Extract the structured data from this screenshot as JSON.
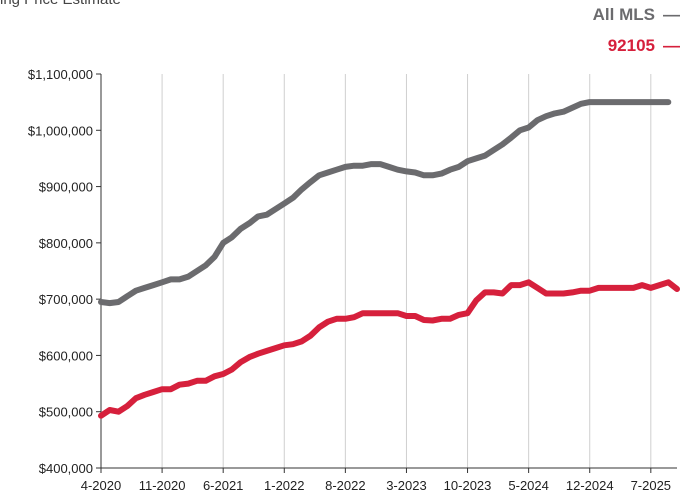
{
  "header": {
    "title_fragment": "ing Price Estimate"
  },
  "legend": {
    "items": [
      {
        "label": "All MLS",
        "dash": "—"
      },
      {
        "label": "92105",
        "dash": "—"
      }
    ]
  },
  "chart_data": {
    "type": "line",
    "title": "",
    "xlabel": "",
    "ylabel": "",
    "ylim": [
      400000,
      1100000
    ],
    "yticks": [
      {
        "value": 400000,
        "label": "$400,000"
      },
      {
        "value": 500000,
        "label": "$500,000"
      },
      {
        "value": 600000,
        "label": "$600,000"
      },
      {
        "value": 700000,
        "label": "$700,000"
      },
      {
        "value": 800000,
        "label": "$800,000"
      },
      {
        "value": 900000,
        "label": "$900,000"
      },
      {
        "value": 1000000,
        "label": "$1,000,000"
      },
      {
        "value": 1100000,
        "label": "$1,100,000"
      }
    ],
    "xticks": [
      {
        "value": "2020-04",
        "label": "4-2020"
      },
      {
        "value": "2020-11",
        "label": "11-2020"
      },
      {
        "value": "2021-06",
        "label": "6-2021"
      },
      {
        "value": "2022-01",
        "label": "1-2022"
      },
      {
        "value": "2022-08",
        "label": "8-2022"
      },
      {
        "value": "2023-03",
        "label": "3-2023"
      },
      {
        "value": "2023-10",
        "label": "10-2023"
      },
      {
        "value": "2024-05",
        "label": "5-2024"
      },
      {
        "value": "2024-12",
        "label": "12-2024"
      },
      {
        "value": "2025-07",
        "label": "7-2025"
      }
    ],
    "grid": "vertical",
    "legend_position": "top-right",
    "series": [
      {
        "name": "All MLS",
        "color": "#6b6b6e",
        "points": [
          [
            "2020-04",
            695000
          ],
          [
            "2020-05",
            693000
          ],
          [
            "2020-06",
            695000
          ],
          [
            "2020-07",
            705000
          ],
          [
            "2020-08",
            715000
          ],
          [
            "2020-09",
            720000
          ],
          [
            "2020-10",
            725000
          ],
          [
            "2020-11",
            730000
          ],
          [
            "2020-12",
            735000
          ],
          [
            "2021-01",
            735000
          ],
          [
            "2021-02",
            740000
          ],
          [
            "2021-03",
            750000
          ],
          [
            "2021-04",
            760000
          ],
          [
            "2021-05",
            775000
          ],
          [
            "2021-06",
            800000
          ],
          [
            "2021-07",
            810000
          ],
          [
            "2021-08",
            825000
          ],
          [
            "2021-09",
            835000
          ],
          [
            "2021-10",
            847000
          ],
          [
            "2021-11",
            850000
          ],
          [
            "2021-12",
            860000
          ],
          [
            "2022-01",
            870000
          ],
          [
            "2022-02",
            880000
          ],
          [
            "2022-03",
            895000
          ],
          [
            "2022-04",
            908000
          ],
          [
            "2022-05",
            920000
          ],
          [
            "2022-06",
            925000
          ],
          [
            "2022-07",
            930000
          ],
          [
            "2022-08",
            935000
          ],
          [
            "2022-09",
            937000
          ],
          [
            "2022-10",
            937000
          ],
          [
            "2022-11",
            940000
          ],
          [
            "2022-12",
            940000
          ],
          [
            "2023-01",
            935000
          ],
          [
            "2023-02",
            930000
          ],
          [
            "2023-03",
            927000
          ],
          [
            "2023-04",
            925000
          ],
          [
            "2023-05",
            920000
          ],
          [
            "2023-06",
            920000
          ],
          [
            "2023-07",
            923000
          ],
          [
            "2023-08",
            930000
          ],
          [
            "2023-09",
            935000
          ],
          [
            "2023-10",
            945000
          ],
          [
            "2023-11",
            950000
          ],
          [
            "2023-12",
            955000
          ],
          [
            "2024-01",
            965000
          ],
          [
            "2024-02",
            975000
          ],
          [
            "2024-03",
            987000
          ],
          [
            "2024-04",
            1000000
          ],
          [
            "2024-05",
            1005000
          ],
          [
            "2024-06",
            1018000
          ],
          [
            "2024-07",
            1025000
          ],
          [
            "2024-08",
            1030000
          ],
          [
            "2024-09",
            1033000
          ],
          [
            "2024-10",
            1040000
          ],
          [
            "2024-11",
            1047000
          ],
          [
            "2024-12",
            1050000
          ],
          [
            "2025-01",
            1050000
          ],
          [
            "2025-02",
            1050000
          ],
          [
            "2025-03",
            1050000
          ],
          [
            "2025-04",
            1050000
          ],
          [
            "2025-05",
            1050000
          ],
          [
            "2025-06",
            1050000
          ],
          [
            "2025-07",
            1050000
          ],
          [
            "2025-08",
            1050000
          ],
          [
            "2025-09",
            1050000
          ]
        ]
      },
      {
        "name": "92105",
        "color": "#d6203c",
        "points": [
          [
            "2020-04",
            493000
          ],
          [
            "2020-05",
            503000
          ],
          [
            "2020-06",
            500000
          ],
          [
            "2020-07",
            510000
          ],
          [
            "2020-08",
            524000
          ],
          [
            "2020-09",
            530000
          ],
          [
            "2020-10",
            535000
          ],
          [
            "2020-11",
            540000
          ],
          [
            "2020-12",
            540000
          ],
          [
            "2021-01",
            548000
          ],
          [
            "2021-02",
            550000
          ],
          [
            "2021-03",
            555000
          ],
          [
            "2021-04",
            555000
          ],
          [
            "2021-05",
            563000
          ],
          [
            "2021-06",
            567000
          ],
          [
            "2021-07",
            575000
          ],
          [
            "2021-08",
            588000
          ],
          [
            "2021-09",
            597000
          ],
          [
            "2021-10",
            603000
          ],
          [
            "2021-11",
            608000
          ],
          [
            "2021-12",
            613000
          ],
          [
            "2022-01",
            618000
          ],
          [
            "2022-02",
            620000
          ],
          [
            "2022-03",
            625000
          ],
          [
            "2022-04",
            635000
          ],
          [
            "2022-05",
            650000
          ],
          [
            "2022-06",
            660000
          ],
          [
            "2022-07",
            665000
          ],
          [
            "2022-08",
            665000
          ],
          [
            "2022-09",
            668000
          ],
          [
            "2022-10",
            675000
          ],
          [
            "2022-11",
            675000
          ],
          [
            "2022-12",
            675000
          ],
          [
            "2023-01",
            675000
          ],
          [
            "2023-02",
            675000
          ],
          [
            "2023-03",
            670000
          ],
          [
            "2023-04",
            670000
          ],
          [
            "2023-05",
            663000
          ],
          [
            "2023-06",
            662000
          ],
          [
            "2023-07",
            665000
          ],
          [
            "2023-08",
            665000
          ],
          [
            "2023-09",
            672000
          ],
          [
            "2023-10",
            675000
          ],
          [
            "2023-11",
            698000
          ],
          [
            "2023-12",
            712000
          ],
          [
            "2024-01",
            712000
          ],
          [
            "2024-02",
            710000
          ],
          [
            "2024-03",
            725000
          ],
          [
            "2024-04",
            725000
          ],
          [
            "2024-05",
            730000
          ],
          [
            "2024-06",
            720000
          ],
          [
            "2024-07",
            710000
          ],
          [
            "2024-08",
            710000
          ],
          [
            "2024-09",
            710000
          ],
          [
            "2024-10",
            712000
          ],
          [
            "2024-11",
            715000
          ],
          [
            "2024-12",
            715000
          ],
          [
            "2025-01",
            720000
          ],
          [
            "2025-02",
            720000
          ],
          [
            "2025-03",
            720000
          ],
          [
            "2025-04",
            720000
          ],
          [
            "2025-05",
            720000
          ],
          [
            "2025-06",
            725000
          ],
          [
            "2025-07",
            720000
          ],
          [
            "2025-08",
            725000
          ],
          [
            "2025-09",
            730000
          ],
          [
            "2025-10",
            718000
          ]
        ]
      }
    ]
  }
}
